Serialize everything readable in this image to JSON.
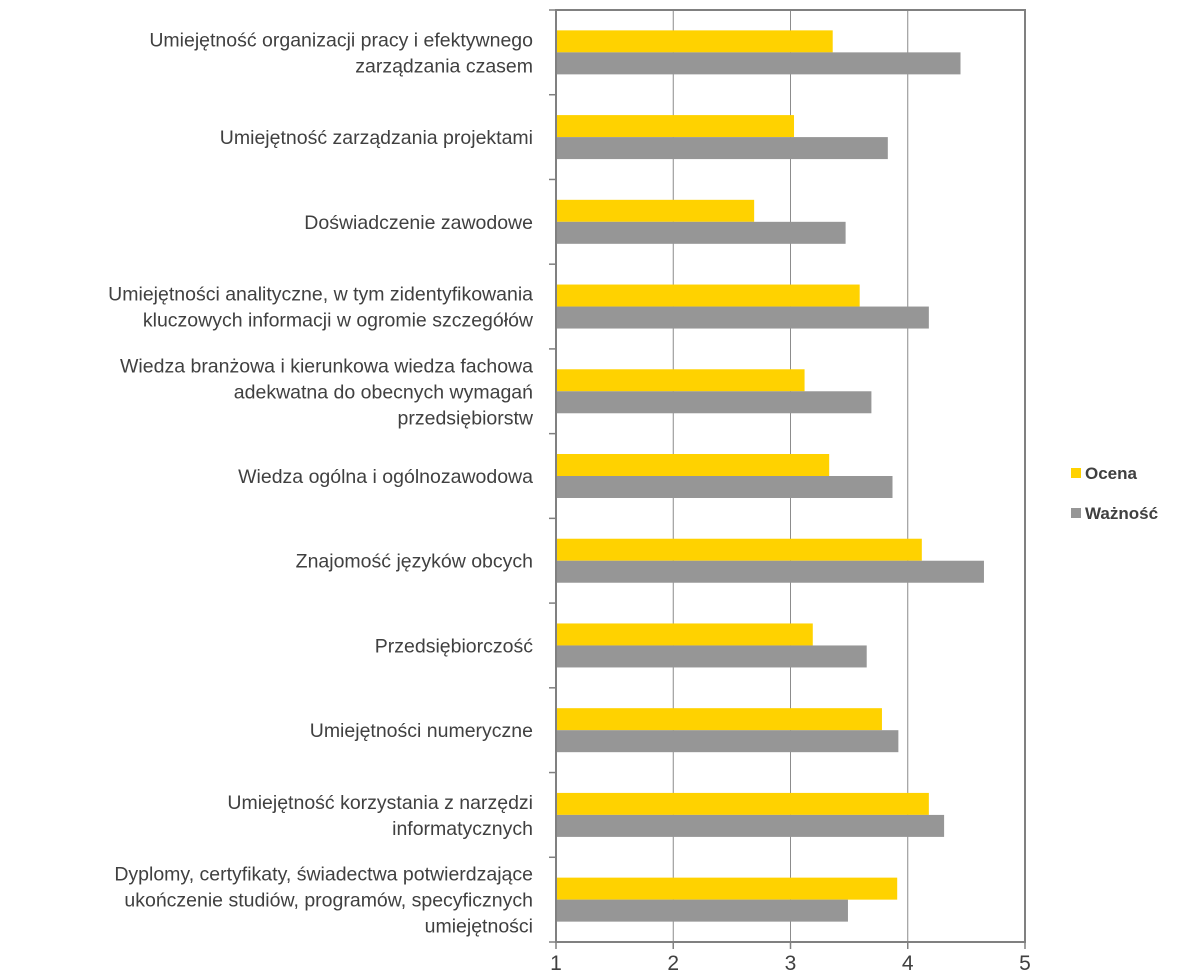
{
  "chart_data": {
    "type": "bar",
    "orientation": "horizontal",
    "categories": [
      [
        "Umiejętność organizacji pracy i efektywnego",
        "zarządzania czasem"
      ],
      [
        "Umiejętność zarządzania projektami"
      ],
      [
        "Doświadczenie zawodowe"
      ],
      [
        "Umiejętności analityczne, w tym zidentyfikowania",
        "kluczowych informacji w ogromie szczegółów"
      ],
      [
        "Wiedza branżowa i kierunkowa wiedza fachowa",
        "adekwatna  do obecnych wymagań",
        "przedsiębiorstw"
      ],
      [
        "Wiedza ogólna i ogólnozawodowa"
      ],
      [
        "Znajomość języków obcych"
      ],
      [
        "Przedsiębiorczość"
      ],
      [
        "Umiejętności numeryczne"
      ],
      [
        "Umiejętność korzystania z narzędzi",
        "informatycznych"
      ],
      [
        "Dyplomy, certyfikaty, świadectwa potwierdzające",
        "ukończenie studiów, programów, specyficznych",
        "umiejętności"
      ]
    ],
    "series": [
      {
        "name": "Ocena",
        "color": "#FFD200",
        "values": [
          3.36,
          3.03,
          2.69,
          3.59,
          3.12,
          3.33,
          4.12,
          3.19,
          3.78,
          4.18,
          3.91
        ]
      },
      {
        "name": "Ważność",
        "color": "#969696",
        "values": [
          4.45,
          3.83,
          3.47,
          4.18,
          3.69,
          3.87,
          4.65,
          3.65,
          3.92,
          4.31,
          3.49
        ]
      }
    ],
    "xlim": [
      1,
      5
    ],
    "ticks": [
      "1",
      "2",
      "3",
      "4",
      "5"
    ],
    "grid": true,
    "legend_position": "right"
  }
}
